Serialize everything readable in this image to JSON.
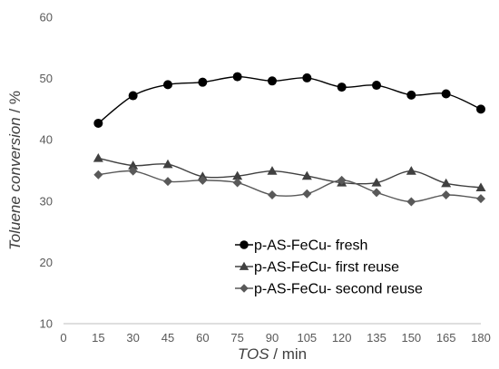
{
  "chart_data": {
    "type": "line",
    "xlabel_italic": "TOS",
    "xlabel_rest": " / min",
    "ylabel_italic": "Toluene conversion",
    "ylabel_rest": " / %",
    "xlim": [
      0,
      180
    ],
    "ylim": [
      10,
      60
    ],
    "x_ticks": [
      0,
      15,
      30,
      45,
      60,
      75,
      90,
      105,
      120,
      135,
      150,
      165,
      180
    ],
    "y_ticks": [
      10,
      20,
      30,
      40,
      50,
      60
    ],
    "x": [
      15,
      30,
      45,
      60,
      75,
      90,
      105,
      120,
      135,
      150,
      165,
      180
    ],
    "grid": false,
    "legend_position": "lower-center",
    "series": [
      {
        "name": "p-AS-FeCu- fresh",
        "marker": "circle",
        "line_color": "#000000",
        "marker_color": "#000000",
        "values": [
          42.7,
          47.2,
          49.0,
          49.4,
          50.3,
          49.6,
          50.1,
          48.6,
          48.9,
          47.3,
          47.5,
          45.0
        ]
      },
      {
        "name": "p-AS-FeCu- first reuse",
        "marker": "triangle",
        "line_color": "#404040",
        "marker_color": "#404040",
        "values": [
          37.0,
          35.8,
          36.0,
          34.0,
          34.1,
          34.9,
          34.1,
          33.0,
          33.0,
          34.9,
          32.9,
          32.2
        ]
      },
      {
        "name": "p-AS-FeCu- second reuse",
        "marker": "diamond",
        "line_color": "#595959",
        "marker_color": "#595959",
        "values": [
          34.3,
          34.9,
          33.2,
          33.4,
          33.0,
          31.0,
          31.2,
          33.4,
          31.4,
          29.9,
          31.0,
          30.4
        ]
      }
    ]
  }
}
